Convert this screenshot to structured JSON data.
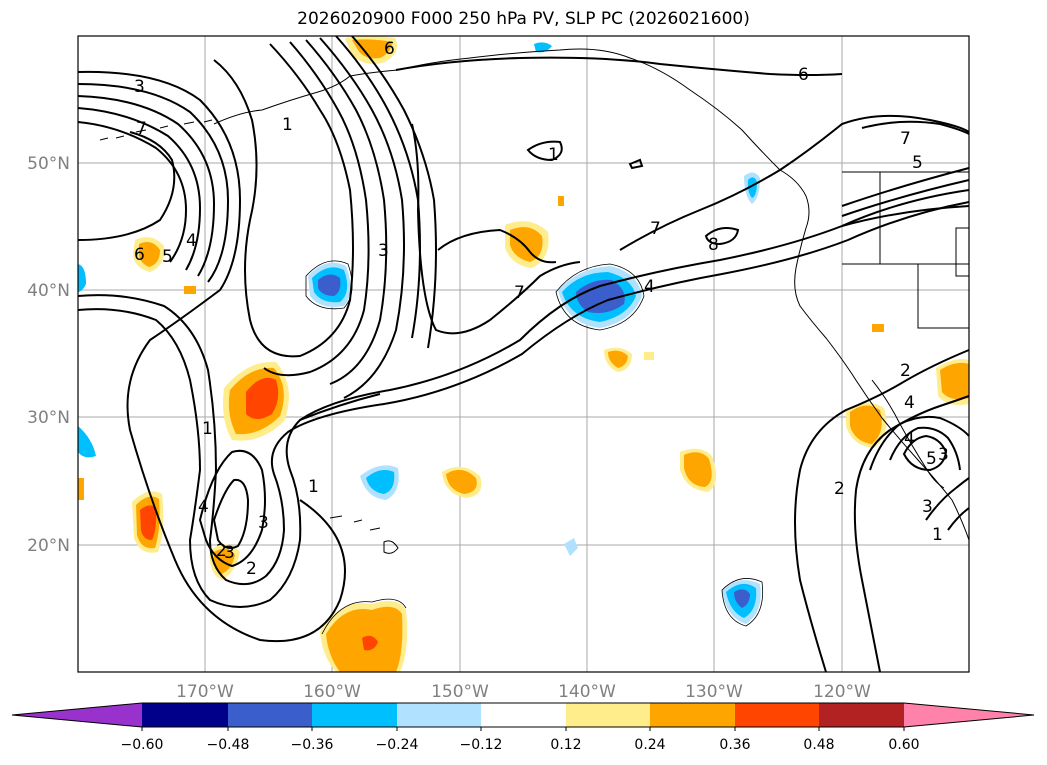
{
  "title": "2026020900 F000 250 hPa PV, SLP PC (2026021600)",
  "map": {
    "lon_range": [
      -180,
      -110
    ],
    "lat_range": [
      10,
      60
    ],
    "lon_ticks": [
      "170°W",
      "160°W",
      "150°W",
      "140°W",
      "130°W",
      "120°W"
    ],
    "lat_ticks": [
      "50°N",
      "40°N",
      "30°N",
      "20°N"
    ],
    "gridlines": true
  },
  "contour_labels": [
    "3",
    "7",
    "1",
    "6",
    "4",
    "7",
    "3",
    "1",
    "3",
    "7",
    "4",
    "8",
    "7",
    "5",
    "6",
    "5",
    "4",
    "1",
    "2",
    "3",
    "2",
    "1",
    "4",
    "5",
    "2",
    "4",
    "3",
    "2",
    "3",
    "1",
    "6"
  ],
  "colorbar": {
    "ticks": [
      "−0.60",
      "−0.48",
      "−0.36",
      "−0.24",
      "−0.12",
      "0.12",
      "0.24",
      "0.36",
      "0.48",
      "0.60"
    ],
    "colors": [
      "#9932cc",
      "#00008b",
      "#3a5fcd",
      "#00bfff",
      "#b0e2ff",
      "#ffffff",
      "#ffec8b",
      "#ffa500",
      "#ff4500",
      "#b22222",
      "#ff82ab"
    ],
    "extend": "both"
  }
}
